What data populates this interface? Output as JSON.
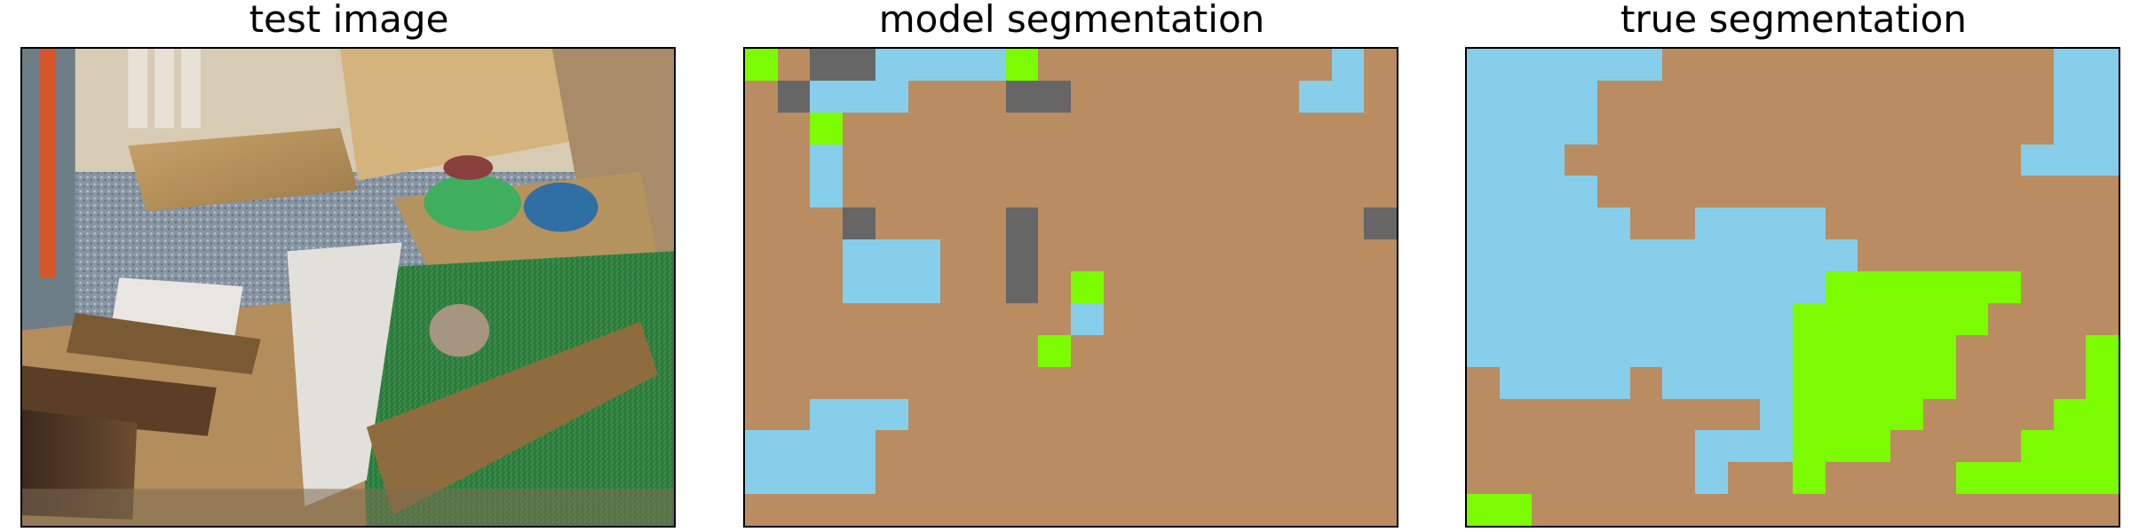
{
  "panels": {
    "test_image": {
      "title": "test image"
    },
    "model_segmentation": {
      "title": "model segmentation"
    },
    "true_segmentation": {
      "title": "true segmentation"
    }
  },
  "colors": {
    "B": "#b98c61",
    "S": "#87ceeb",
    "G": "#7cfc00",
    "D": "#666666"
  },
  "segmentation": {
    "grid_cols": 20,
    "grid_rows": 15,
    "model": [
      "GBDDSSSSGBBBBBBBBBSB",
      "BDSSSBBBDDBBBBBBBSSB",
      "BBGBBBBBBBBBBBBBBBBB",
      "BBSBBBBBBBBBBBBBBBBB",
      "BBSBBBBBBBBBBBBBBBBB",
      "BBBDBBBBDBBBBBBBBBBD",
      "BBBSSSBBDBBBBBBBBBBB",
      "BBBSSSBBDBGBBBBBBBBB",
      "BBBBBBBBBBSBBBBBBBBB",
      "BBBBBBBBBGBBBBBBBBBB",
      "BBBBBBBBBBBBBBBBBBBB",
      "BBSSSBBBBBBBBBBBBBBB",
      "SSSSBBBBBBBBBBBBBBBB",
      "SSSSBBBBBBBBBBBBBBBB",
      "BBBBBBBBBBBBBBBBBBBB"
    ],
    "truth": [
      "SSSSSSBBBBBBBBBBBBSS",
      "SSSSBBBBBBBBBBBBBBSS",
      "SSSSBBBBBBBBBBBBBBSS",
      "SSSBBBBBBBBBBBBBBSSS",
      "SSSSBBBBBBBBBBBBBBBB",
      "SSSSSBBSSSSBBBBBBBBB",
      "SSSSSSSSSSSSBBBBBBBB",
      "SSSSSSSSSSSGGGGGGBBB",
      "SSSSSSSSSSGGGGGGBBBB",
      "SSSSSSSSSSGGGGGBBBBG",
      "BSSSSBSSSSGGGGGBBBBG",
      "BBBBBBBBBSGGGGBBBBGG",
      "BBBBBBBSSSGGGBBBBGGG",
      "BBBBBBBSBBGBBBBGGGGG",
      "GGBBBBBBBBBBBBBBBBBB"
    ]
  }
}
